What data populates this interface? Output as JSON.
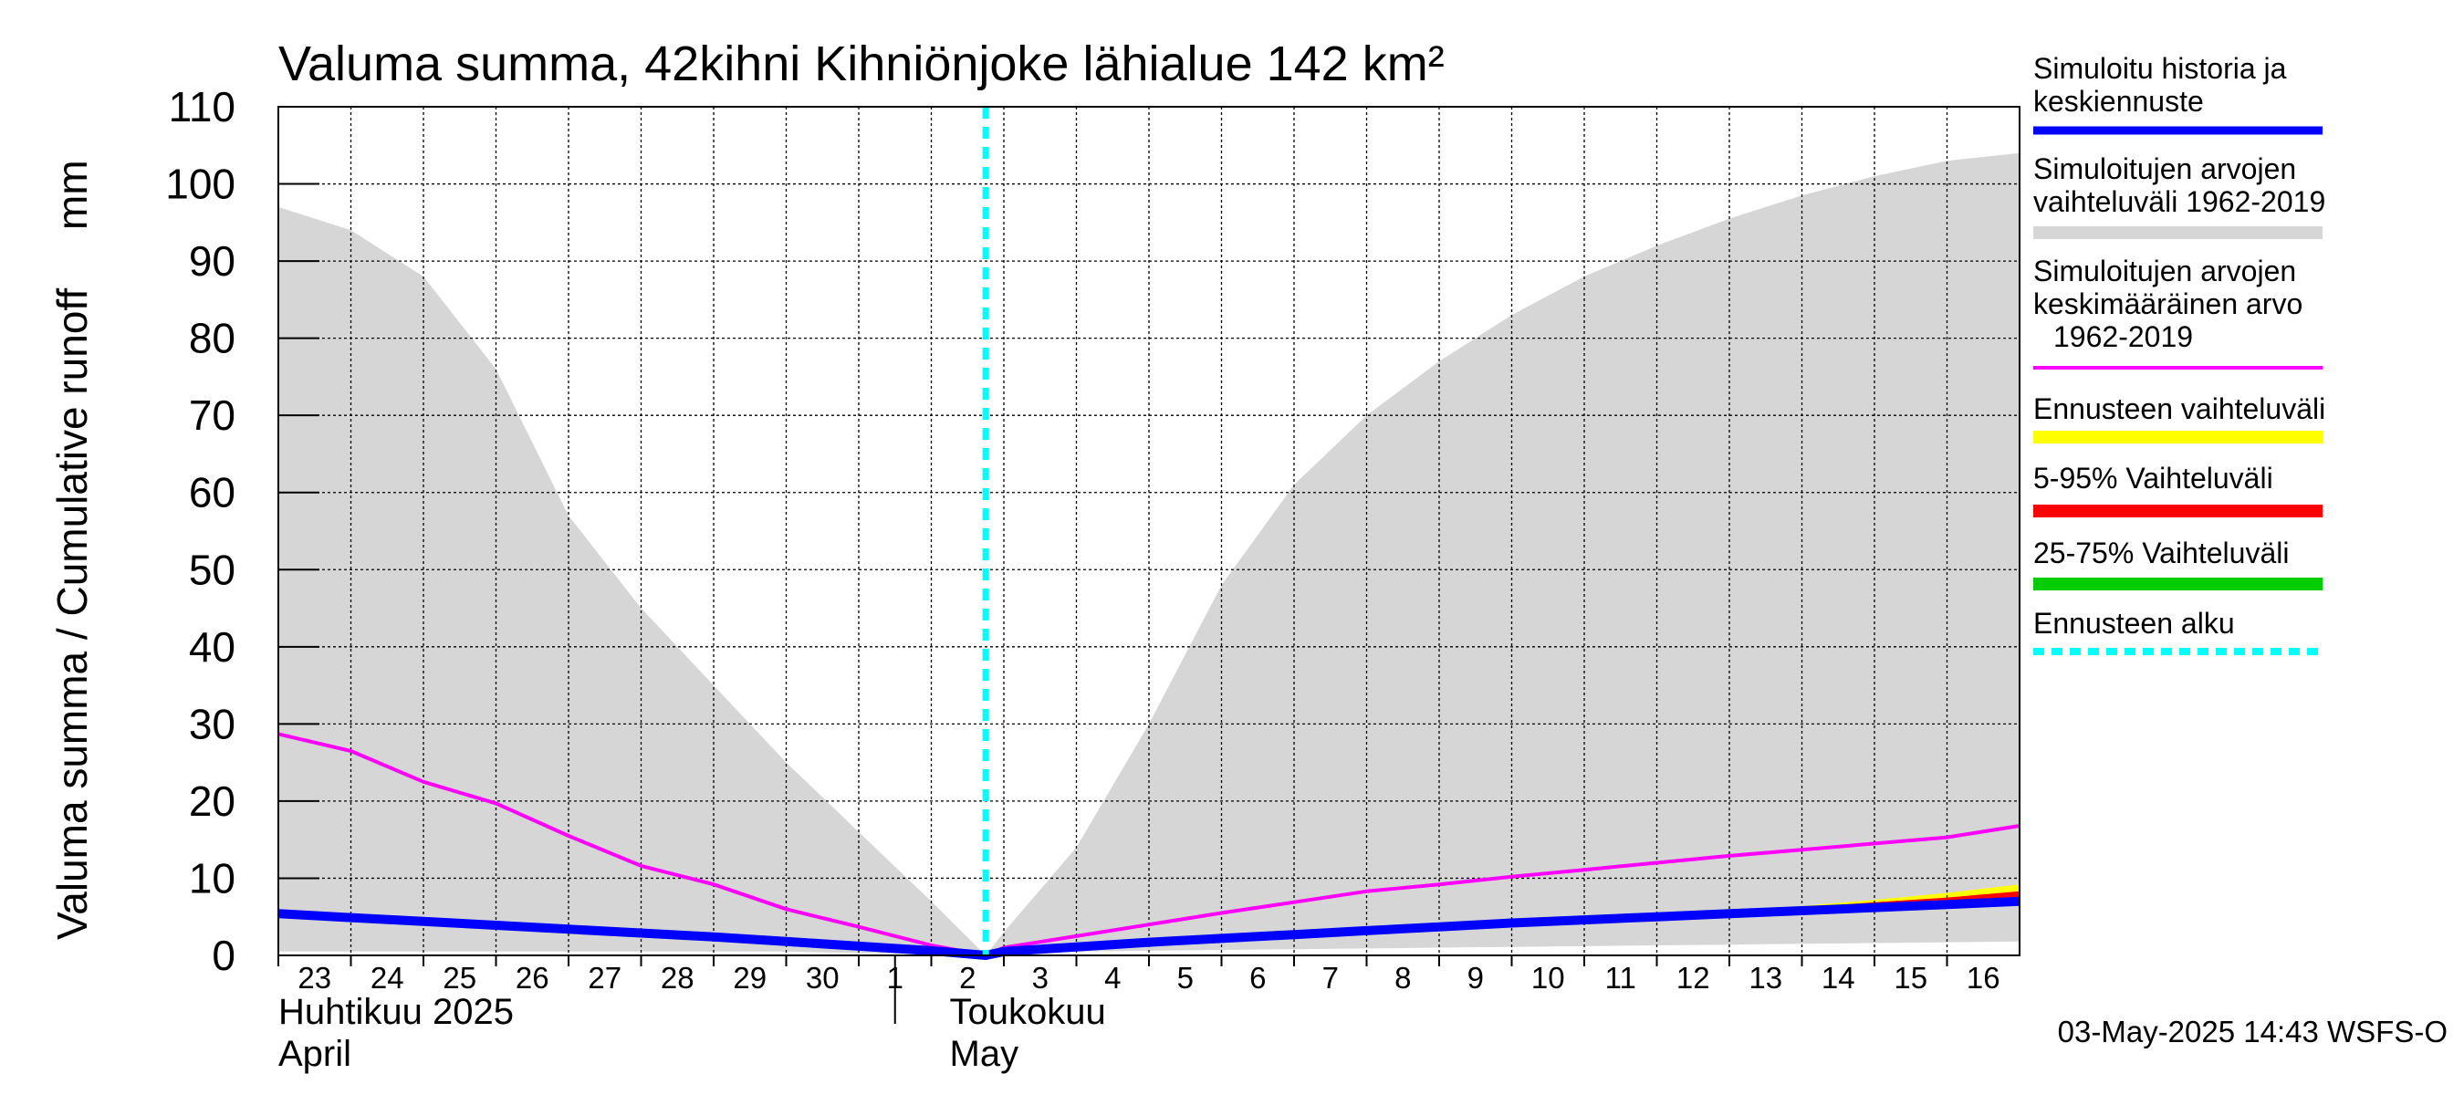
{
  "chart_data": {
    "type": "area",
    "title": "Valuma summa, 42kihni Kihniönjoke lähialue 142 km²",
    "ylabel": "Valuma summa / Cumulative runoff     mm",
    "ylim": [
      0,
      110
    ],
    "yticks": [
      0,
      10,
      20,
      30,
      40,
      50,
      60,
      70,
      80,
      90,
      100,
      110
    ],
    "grid": true,
    "legend_position": "right",
    "x_day_labels": [
      "23",
      "24",
      "25",
      "26",
      "27",
      "28",
      "29",
      "30",
      "1",
      "2",
      "3",
      "4",
      "5",
      "6",
      "7",
      "8",
      "9",
      "10",
      "11",
      "12",
      "13",
      "14",
      "15",
      "16"
    ],
    "month_labels": [
      {
        "fi": "Huhtikuu  2025",
        "en": "April"
      },
      {
        "fi": "Toukokuu",
        "en": "May"
      }
    ],
    "forecast_start": "2025-05-02 18:00",
    "series": [
      {
        "name": "Simuloitujen arvojen vaihteluväli 1962-2019",
        "kind": "band",
        "color": "#d6d6d6",
        "x": [
          "2025-04-23",
          "2025-04-24",
          "2025-04-25",
          "2025-04-26",
          "2025-04-27",
          "2025-04-28",
          "2025-04-29",
          "2025-04-30",
          "2025-05-01",
          "2025-05-02",
          "2025-05-02 18:00",
          "2025-05-03",
          "2025-05-04",
          "2025-05-05",
          "2025-05-06",
          "2025-05-07",
          "2025-05-08",
          "2025-05-09",
          "2025-05-10",
          "2025-05-11",
          "2025-05-12",
          "2025-05-13",
          "2025-05-14",
          "2025-05-15",
          "2025-05-16",
          "2025-05-17"
        ],
        "upper": [
          97,
          94,
          88,
          76,
          57,
          45,
          35,
          25,
          16,
          7,
          0,
          3,
          14,
          30,
          48,
          61,
          70,
          77,
          83,
          88,
          92,
          95.5,
          98.5,
          101,
          103,
          104
        ],
        "lower": [
          0.5,
          0.5,
          0.5,
          0.5,
          0.5,
          0.5,
          0.5,
          0.5,
          0.3,
          0.2,
          0,
          0.3,
          0.5,
          0.6,
          0.7,
          0.8,
          0.9,
          1,
          1.1,
          1.2,
          1.3,
          1.4,
          1.5,
          1.6,
          1.7,
          1.8
        ]
      },
      {
        "name": "Simuloitujen arvojen keskimääräinen arvo 1962-2019",
        "kind": "line",
        "color": "#ff00ff",
        "x": [
          "2025-04-23",
          "2025-04-24",
          "2025-04-25",
          "2025-04-26",
          "2025-04-27",
          "2025-04-28",
          "2025-04-29",
          "2025-04-30",
          "2025-05-01",
          "2025-05-02",
          "2025-05-02 18:00",
          "2025-05-03",
          "2025-05-04",
          "2025-05-05",
          "2025-05-06",
          "2025-05-07",
          "2025-05-08",
          "2025-05-09",
          "2025-05-10",
          "2025-05-11",
          "2025-05-12",
          "2025-05-13",
          "2025-05-14",
          "2025-05-15",
          "2025-05-16",
          "2025-05-17"
        ],
        "values": [
          28.7,
          26.5,
          22.5,
          19.7,
          15.5,
          11.6,
          9.2,
          6,
          3.7,
          1.3,
          0,
          1,
          2.5,
          4,
          5.5,
          6.9,
          8.3,
          9.2,
          10.2,
          11.1,
          12,
          12.9,
          13.7,
          14.5,
          15.3,
          16.8
        ]
      },
      {
        "name": "Ennusteen vaihteluväli",
        "kind": "band",
        "color": "#ffff00",
        "x": [
          "2025-05-10",
          "2025-05-11",
          "2025-05-12",
          "2025-05-13",
          "2025-05-14",
          "2025-05-15",
          "2025-05-16",
          "2025-05-17"
        ],
        "upper": [
          4.3,
          4.8,
          5.3,
          5.8,
          6.4,
          7.2,
          8.1,
          9.2
        ],
        "lower": [
          4.1,
          4.4,
          4.8,
          5.2,
          5.6,
          6.0,
          6.4,
          6.8
        ]
      },
      {
        "name": "5-95% Vaihteluväli",
        "kind": "band",
        "color": "#ff0000",
        "x": [
          "2025-05-10",
          "2025-05-11",
          "2025-05-12",
          "2025-05-13",
          "2025-05-14",
          "2025-05-15",
          "2025-05-16",
          "2025-05-17"
        ],
        "upper": [
          4.2,
          4.7,
          5.2,
          5.7,
          6.2,
          6.9,
          7.5,
          8.3
        ],
        "lower": [
          4.1,
          4.5,
          4.9,
          5.3,
          5.7,
          6.1,
          6.5,
          7.0
        ]
      },
      {
        "name": "25-75% Vaihteluväli",
        "kind": "band",
        "color": "#00cc00",
        "x": [
          "2025-05-10",
          "2025-05-11",
          "2025-05-12",
          "2025-05-13",
          "2025-05-14",
          "2025-05-15",
          "2025-05-16",
          "2025-05-17"
        ],
        "upper": [
          4.2,
          4.6,
          5.0,
          5.4,
          5.8,
          6.3,
          6.7,
          7.1
        ],
        "lower": [
          4.1,
          4.5,
          4.9,
          5.3,
          5.7,
          6.1,
          6.5,
          6.9
        ]
      },
      {
        "name": "Simuloitu historia ja keskiennuste",
        "kind": "line",
        "color": "#0000ff",
        "x": [
          "2025-04-23",
          "2025-04-24",
          "2025-04-25",
          "2025-04-26",
          "2025-04-27",
          "2025-04-28",
          "2025-04-29",
          "2025-04-30",
          "2025-05-01",
          "2025-05-02",
          "2025-05-02 18:00",
          "2025-05-03",
          "2025-05-04",
          "2025-05-05",
          "2025-05-06",
          "2025-05-07",
          "2025-05-08",
          "2025-05-09",
          "2025-05-10",
          "2025-05-11",
          "2025-05-12",
          "2025-05-13",
          "2025-05-14",
          "2025-05-15",
          "2025-05-16",
          "2025-05-17"
        ],
        "values": [
          5.4,
          4.9,
          4.4,
          3.9,
          3.4,
          2.9,
          2.4,
          1.8,
          1.2,
          0.6,
          0,
          0.5,
          1.1,
          1.7,
          2.2,
          2.7,
          3.2,
          3.7,
          4.2,
          4.6,
          5.0,
          5.4,
          5.8,
          6.2,
          6.6,
          7.0
        ]
      }
    ],
    "legend": [
      {
        "label": "Simuloitu historia ja keskiennuste",
        "color": "#0000ff",
        "style": "solid"
      },
      {
        "label": "Simuloitujen arvojen vaihteluväli 1962-2019",
        "color": "#d6d6d6",
        "style": "solid"
      },
      {
        "label": "Simuloitujen arvojen keskimääräinen arvo 1962-2019",
        "color": "#ff00ff",
        "style": "solid"
      },
      {
        "label": "Ennusteen vaihteluväli",
        "color": "#ffff00",
        "style": "solid"
      },
      {
        "label": "5-95% Vaihteluväli",
        "color": "#ff0000",
        "style": "solid"
      },
      {
        "label": "25-75% Vaihteluväli",
        "color": "#00cc00",
        "style": "solid"
      },
      {
        "label": "Ennusteen alku",
        "color": "#00ffff",
        "style": "dashed"
      }
    ],
    "footer": "03-May-2025 14:43 WSFS-O"
  }
}
